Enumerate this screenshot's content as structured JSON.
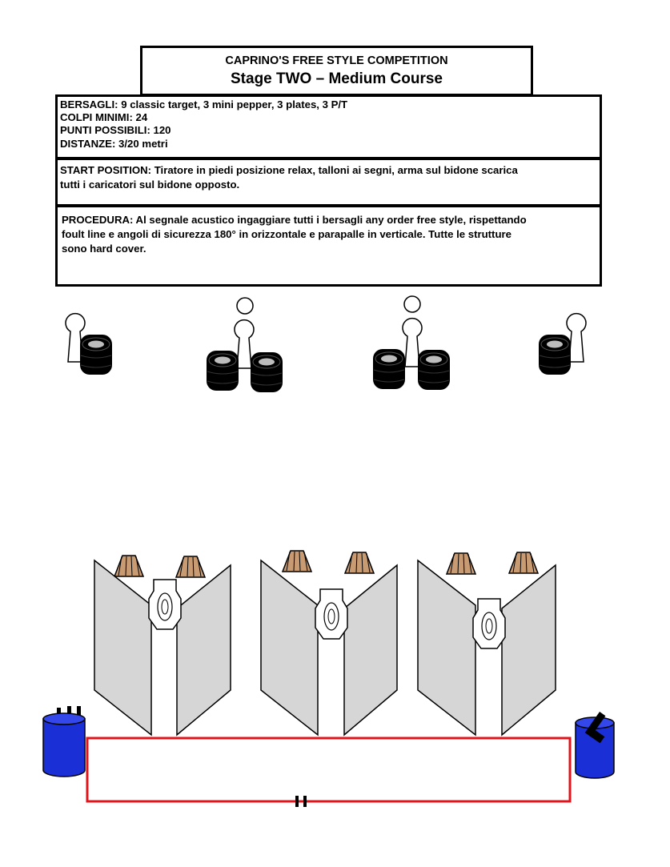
{
  "header": {
    "competition": "CAPRINO'S FREE STYLE COMPETITION",
    "stage": "Stage TWO – Medium Course"
  },
  "info": {
    "bersagli_label": "BERSAGLI:",
    "bersagli_value": " 9 classic target, 3 mini pepper, 3 plates, 3 P/T",
    "colpi_label": "COLPI MINIMI:",
    "colpi_value": " 24",
    "punti_label": "PUNTI POSSIBILI:",
    "punti_value": " 120",
    "distanze_label": "DISTANZE:",
    "distanze_value": " 3/20 metri"
  },
  "start": {
    "line1": "START POSITION: Tiratore in piedi posizione relax, talloni ai segni, arma sul bidone scarica",
    "line2": "tutti i caricatori sul bidone opposto."
  },
  "procedure": {
    "line1": "PROCEDURA: Al segnale acustico ingaggiare tutti i bersagli any order free style, rispettando",
    "line2": "foult line e angoli di sicurezza 180°  in orizzontale e parapalle in verticale. Tutte le strutture",
    "line3": "sono hard cover."
  },
  "colors": {
    "foult_line": "#e0141a",
    "barrel": "#1a2fd6",
    "wall": "#d6d6d6",
    "classic_target": "#c89b73",
    "tyre": "#000000"
  }
}
